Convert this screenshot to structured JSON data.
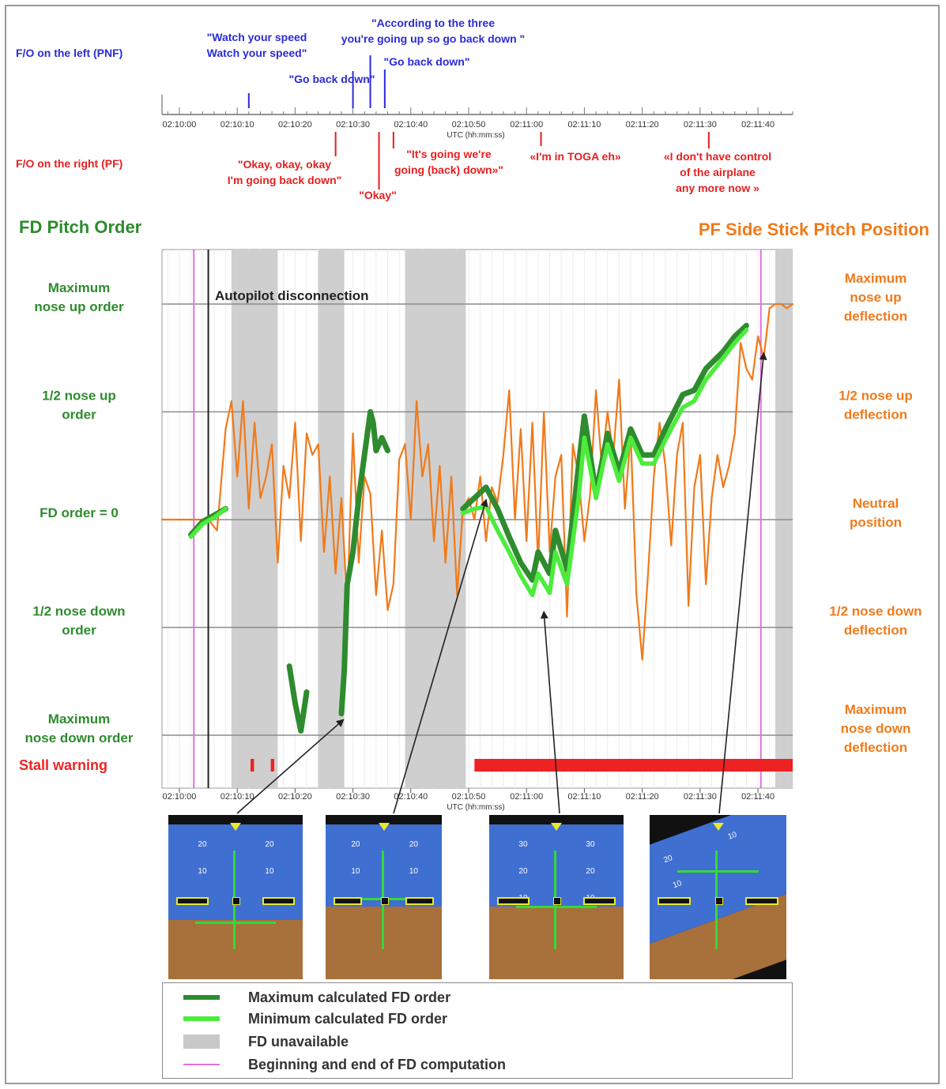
{
  "header": {
    "pnf_label": "F/O on the left (PNF)",
    "pf_label": "F/O on the right (PF)",
    "axis_unit": "UTC (hh:mm:ss)"
  },
  "pnf_quotes": [
    {
      "t": 12,
      "lines": [
        "\"Watch your speed",
        "Watch your speed\""
      ]
    },
    {
      "t": 30,
      "lines": [
        "\"Go back down\""
      ]
    },
    {
      "t": 33,
      "lines": [
        "\"According to the three",
        "you're going up so go back down \""
      ]
    },
    {
      "t": 35.5,
      "lines": [
        "\"Go back down\""
      ]
    }
  ],
  "pf_quotes": [
    {
      "t": 27,
      "lines": [
        "\"Okay, okay, okay",
        "I'm going back down\""
      ]
    },
    {
      "t": 34.5,
      "lines": [
        "\"Okay\""
      ]
    },
    {
      "t": 37,
      "lines": [
        "\"It's going we're",
        "going (back) down»\""
      ]
    },
    {
      "t": 62.5,
      "lines": [
        "«I'm in TOGA eh»"
      ]
    },
    {
      "t": 91.5,
      "lines": [
        "«I don't have control",
        "of the airplane",
        "any more now »"
      ]
    }
  ],
  "chart_data": {
    "type": "line",
    "title_left": "FD Pitch Order",
    "title_right": "PF Side Stick Pitch Position",
    "xlabel": "UTC (hh:mm:ss)",
    "x_ticks": [
      "02:10:00",
      "02:10:10",
      "02:10:20",
      "02:10:30",
      "02:10:40",
      "02:10:50",
      "02:11:00",
      "02:11:10",
      "02:11:20",
      "02:11:30",
      "02:11:40"
    ],
    "xlim_seconds_after_02_10_00": [
      -3,
      106
    ],
    "ylim": [
      -1,
      1
    ],
    "y_levels": [
      1,
      0.5,
      0,
      -0.5,
      -1
    ],
    "left_y_labels": [
      "Maximum|nose up order",
      "1/2 nose up|order",
      "FD order = 0",
      "1/2 nose down|order",
      "Maximum|nose down order"
    ],
    "right_y_labels": [
      "Maximum|nose up|deflection",
      "1/2 nose up|deflection",
      "Neutral|position",
      "1/2 nose down|deflection",
      "Maximum|nose down|deflection"
    ],
    "fd_unavailable": [
      [
        9,
        17
      ],
      [
        24,
        28.5
      ],
      [
        39,
        49.5
      ],
      [
        103,
        106
      ]
    ],
    "fd_computation_bounds": [
      2.5,
      100.5
    ],
    "autopilot_disconnection": {
      "t": 5,
      "label": "Autopilot disconnection"
    },
    "stall_warning": {
      "label": "Stall warning",
      "segments": [
        [
          12.3,
          12.9
        ],
        [
          15.8,
          16.4
        ],
        [
          51,
          106
        ]
      ]
    },
    "series": [
      {
        "name": "Maximum calculated FD order",
        "color": "#2e8b2e",
        "segments": [
          [
            [
              2,
              -0.07
            ],
            [
              4,
              -0.01
            ],
            [
              6,
              0.02
            ],
            [
              8,
              0.05
            ]
          ],
          [
            [
              19,
              -0.68
            ],
            [
              20,
              -0.85
            ],
            [
              21,
              -0.98
            ],
            [
              22,
              -0.8
            ]
          ],
          [
            [
              28,
              -0.9
            ],
            [
              28.5,
              -0.7
            ],
            [
              29,
              -0.3
            ],
            [
              30,
              -0.15
            ],
            [
              31,
              0.1
            ],
            [
              32,
              0.3
            ],
            [
              33,
              0.5
            ],
            [
              33.5,
              0.45
            ],
            [
              34,
              0.32
            ],
            [
              35,
              0.38
            ],
            [
              36,
              0.32
            ]
          ],
          [
            [
              49,
              0.05
            ],
            [
              51,
              0.1
            ],
            [
              53,
              0.15
            ],
            [
              55,
              0.05
            ],
            [
              57,
              -0.08
            ],
            [
              59,
              -0.2
            ],
            [
              61,
              -0.28
            ],
            [
              62,
              -0.15
            ],
            [
              64,
              -0.25
            ],
            [
              65,
              -0.05
            ],
            [
              67,
              -0.23
            ],
            [
              69,
              0.25
            ],
            [
              70,
              0.48
            ],
            [
              72,
              0.12
            ],
            [
              74,
              0.4
            ],
            [
              76,
              0.22
            ],
            [
              78,
              0.42
            ],
            [
              80,
              0.3
            ],
            [
              82,
              0.3
            ],
            [
              84,
              0.42
            ],
            [
              87,
              0.58
            ],
            [
              89,
              0.6
            ],
            [
              91,
              0.7
            ],
            [
              94,
              0.78
            ],
            [
              96,
              0.85
            ],
            [
              98,
              0.9
            ]
          ]
        ]
      },
      {
        "name": "Minimum calculated FD order",
        "color": "#4cec3c",
        "segments": [
          [
            [
              2,
              -0.08
            ],
            [
              4,
              -0.02
            ],
            [
              6,
              0.01
            ],
            [
              8,
              0.05
            ]
          ],
          [
            [
              49,
              0.03
            ],
            [
              51,
              0.05
            ],
            [
              53,
              0.06
            ],
            [
              55,
              -0.05
            ],
            [
              57,
              -0.15
            ],
            [
              59,
              -0.26
            ],
            [
              61,
              -0.35
            ],
            [
              62,
              -0.25
            ],
            [
              64,
              -0.34
            ],
            [
              65,
              -0.15
            ],
            [
              67,
              -0.3
            ],
            [
              69,
              0.1
            ],
            [
              70,
              0.38
            ],
            [
              72,
              0.1
            ],
            [
              74,
              0.35
            ],
            [
              76,
              0.18
            ],
            [
              78,
              0.38
            ],
            [
              80,
              0.26
            ],
            [
              82,
              0.26
            ],
            [
              84,
              0.37
            ],
            [
              87,
              0.52
            ],
            [
              89,
              0.55
            ],
            [
              91,
              0.65
            ],
            [
              94,
              0.75
            ],
            [
              96,
              0.82
            ],
            [
              98,
              0.88
            ]
          ]
        ]
      },
      {
        "name": "PF Side Stick Pitch Position",
        "color": "#f07a1a",
        "segments": [
          [
            [
              -3,
              0
            ],
            [
              5,
              0
            ],
            [
              6.5,
              -0.05
            ],
            [
              7,
              0.1
            ],
            [
              8,
              0.42
            ],
            [
              9,
              0.55
            ],
            [
              10,
              0.2
            ],
            [
              11,
              0.55
            ],
            [
              12,
              0.05
            ],
            [
              13,
              0.45
            ],
            [
              14,
              0.1
            ],
            [
              15,
              0.2
            ],
            [
              16,
              0.35
            ],
            [
              17,
              -0.2
            ],
            [
              18,
              0.25
            ],
            [
              19,
              0.1
            ],
            [
              20,
              0.45
            ],
            [
              21,
              -0.1
            ],
            [
              22,
              0.4
            ],
            [
              23,
              0.3
            ],
            [
              24,
              0.35
            ],
            [
              25,
              -0.15
            ],
            [
              26,
              0.2
            ],
            [
              27,
              -0.25
            ],
            [
              28,
              0.1
            ],
            [
              29,
              -0.4
            ],
            [
              30,
              0.4
            ],
            [
              31,
              -0.2
            ],
            [
              32,
              0.2
            ],
            [
              33,
              0.12
            ],
            [
              34,
              -0.35
            ],
            [
              35,
              -0.05
            ],
            [
              36,
              -0.42
            ],
            [
              37,
              -0.3
            ],
            [
              38,
              0.28
            ],
            [
              39,
              0.35
            ],
            [
              40,
              0.0
            ],
            [
              41,
              0.55
            ],
            [
              42,
              0.2
            ],
            [
              43,
              0.35
            ],
            [
              44,
              -0.1
            ],
            [
              45,
              0.25
            ],
            [
              46,
              -0.2
            ],
            [
              47,
              0.2
            ],
            [
              48,
              -0.35
            ],
            [
              49,
              0.05
            ],
            [
              50,
              0.1
            ],
            [
              51,
              0.0
            ],
            [
              52,
              0.2
            ],
            [
              53,
              -0.1
            ],
            [
              54,
              0.15
            ],
            [
              55,
              0.08
            ],
            [
              56,
              0.3
            ],
            [
              57,
              0.6
            ],
            [
              58,
              0.0
            ],
            [
              59,
              0.42
            ],
            [
              60,
              -0.1
            ],
            [
              61,
              0.45
            ],
            [
              62,
              -0.2
            ],
            [
              63,
              0.5
            ],
            [
              64,
              -0.15
            ],
            [
              65,
              0.2
            ],
            [
              66,
              0.3
            ],
            [
              67,
              -0.45
            ],
            [
              68,
              0.35
            ],
            [
              69,
              0.2
            ],
            [
              70,
              -0.1
            ],
            [
              71,
              0.12
            ],
            [
              72,
              0.6
            ],
            [
              73,
              0.25
            ],
            [
              74,
              0.5
            ],
            [
              75,
              0.3
            ],
            [
              76,
              0.65
            ],
            [
              77,
              0.05
            ],
            [
              78,
              0.4
            ],
            [
              79,
              -0.35
            ],
            [
              80,
              -0.65
            ],
            [
              81,
              -0.25
            ],
            [
              82,
              0.2
            ],
            [
              83,
              0.45
            ],
            [
              84,
              0.25
            ],
            [
              85,
              -0.12
            ],
            [
              86,
              0.3
            ],
            [
              87,
              0.45
            ],
            [
              88,
              -0.4
            ],
            [
              89,
              0.15
            ],
            [
              90,
              0.3
            ],
            [
              91,
              -0.3
            ],
            [
              92,
              0.1
            ],
            [
              93,
              0.3
            ],
            [
              94,
              0.15
            ],
            [
              95,
              0.25
            ],
            [
              96,
              0.4
            ],
            [
              97,
              0.82
            ],
            [
              98,
              0.7
            ],
            [
              99,
              0.65
            ],
            [
              100,
              0.85
            ],
            [
              101,
              0.75
            ],
            [
              102,
              0.98
            ],
            [
              103,
              1.0
            ],
            [
              104,
              1.0
            ],
            [
              105,
              0.98
            ],
            [
              106,
              1.0
            ]
          ]
        ]
      }
    ],
    "legend": [
      {
        "label": "Maximum calculated FD order",
        "color": "#2e8b2e",
        "kind": "line"
      },
      {
        "label": "Minimum calculated FD order",
        "color": "#4cec3c",
        "kind": "line"
      },
      {
        "label": "FD unavailable",
        "color": "#c8c8c8",
        "kind": "box"
      },
      {
        "label": "Beginning and end of FD computation",
        "color": "#e070e0",
        "kind": "thin"
      }
    ],
    "legend_placement": "bottom",
    "grid": true
  },
  "pfd_images": [
    {
      "pitch_marks": [
        "20",
        "20",
        "10",
        "10"
      ],
      "points_to_t": 28.3,
      "points_to_y": -0.9
    },
    {
      "pitch_marks": [
        "20",
        "20",
        "10",
        "10"
      ],
      "points_to_t": 53,
      "points_to_y": 0.12
    },
    {
      "pitch_marks": [
        "30",
        "30",
        "20",
        "20",
        "10",
        "10"
      ],
      "points_to_t": 63,
      "points_to_y": -0.4
    },
    {
      "pitch_marks": [
        "20",
        "10",
        "10"
      ],
      "points_to_t": 101,
      "points_to_y": 0.8
    }
  ],
  "colors": {
    "pnf": "#2b2bd9",
    "pf": "#e52020",
    "fd_title": "#2e8b2e",
    "stick_title": "#f07a1a",
    "stall": "#ee2222",
    "fd_bound": "#e070e0"
  }
}
